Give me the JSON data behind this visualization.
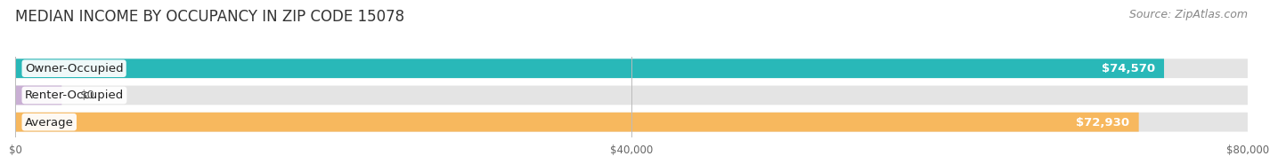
{
  "title": "MEDIAN INCOME BY OCCUPANCY IN ZIP CODE 15078",
  "source": "Source: ZipAtlas.com",
  "categories": [
    "Owner-Occupied",
    "Renter-Occupied",
    "Average"
  ],
  "values": [
    74570,
    0,
    72930
  ],
  "renter_small_val": 3000,
  "bar_colors": [
    "#29b8b8",
    "#c9afd4",
    "#f7b85e"
  ],
  "bar_bg_color": "#e4e4e4",
  "value_labels": [
    "$74,570",
    "$0",
    "$72,930"
  ],
  "x_ticks": [
    0,
    40000,
    80000
  ],
  "x_tick_labels": [
    "$0",
    "$40,000",
    "$80,000"
  ],
  "xlim": [
    0,
    80000
  ],
  "background_color": "#ffffff",
  "title_fontsize": 12,
  "source_fontsize": 9,
  "bar_label_fontsize": 9.5,
  "value_label_fontsize": 9.5
}
